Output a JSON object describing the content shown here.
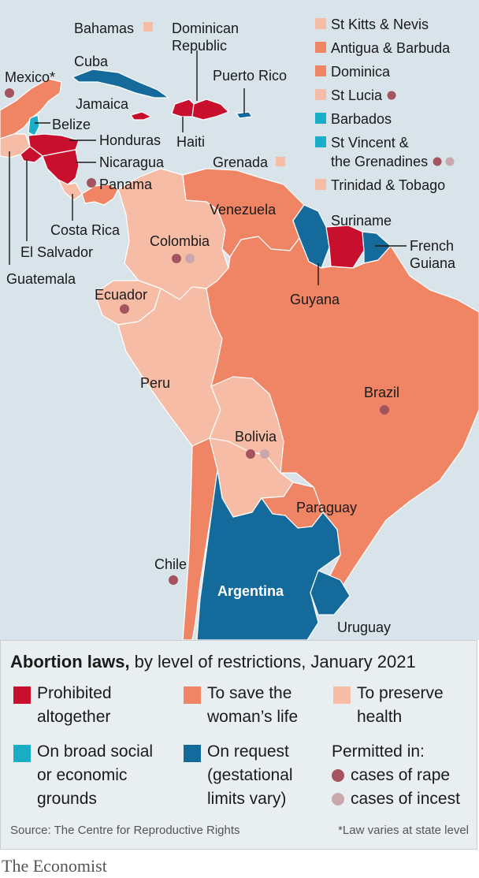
{
  "colors": {
    "sea": "#d8e4ea",
    "prohibited": "#c8102e",
    "save_life": "#f08566",
    "preserve_health": "#f7bca5",
    "broad_grounds": "#19aec6",
    "on_request": "#156a9c",
    "rape": "#a3545f",
    "incest": "#c9a8ad",
    "brand_red": "#e3120b"
  },
  "countries": {
    "bahamas": "Bahamas",
    "dominican_republic_1": "Dominican",
    "dominican_republic_2": "Republic",
    "cuba": "Cuba",
    "puerto_rico": "Puerto Rico",
    "mexico": "Mexico*",
    "jamaica": "Jamaica",
    "belize": "Belize",
    "haiti": "Haiti",
    "honduras": "Honduras",
    "nicaragua": "Nicaragua",
    "panama": "Panama",
    "grenada": "Grenada",
    "costa_rica": "Costa Rica",
    "el_salvador": "El Salvador",
    "guatemala": "Guatemala",
    "venezuela": "Venezuela",
    "suriname": "Suriname",
    "colombia": "Colombia",
    "french_guiana_1": "French",
    "french_guiana_2": "Guiana",
    "guyana": "Guyana",
    "ecuador": "Ecuador",
    "peru": "Peru",
    "brazil": "Brazil",
    "bolivia": "Bolivia",
    "paraguay": "Paraguay",
    "chile": "Chile",
    "argentina": "Argentina",
    "uruguay": "Uruguay"
  },
  "island_list": [
    {
      "name": "St Kitts & Nevis",
      "category": "preserve_health",
      "rape": false,
      "incest": false
    },
    {
      "name": "Antigua & Barbuda",
      "category": "save_life",
      "rape": false,
      "incest": false
    },
    {
      "name": "Dominica",
      "category": "save_life",
      "rape": false,
      "incest": false
    },
    {
      "name": "St Lucia",
      "category": "preserve_health",
      "rape": true,
      "incest": false
    },
    {
      "name": "Barbados",
      "category": "broad_grounds",
      "rape": false,
      "incest": false
    },
    {
      "name": "St Vincent &",
      "name2": "the Grenadines",
      "category": "broad_grounds",
      "rape": true,
      "incest": true
    },
    {
      "name": "Trinidad & Tobago",
      "category": "preserve_health",
      "rape": false,
      "incest": false
    }
  ],
  "legend": {
    "title_bold": "Abortion laws,",
    "title_rest": " by level of restrictions, January 2021",
    "prohibited_1": "Prohibited",
    "prohibited_2": "altogether",
    "save_life_1": "To save the",
    "save_life_2": "woman’s life",
    "preserve_1": "To preserve",
    "preserve_2": "health",
    "broad_1": "On broad social",
    "broad_2": "or economic",
    "broad_3": "grounds",
    "request_1": "On request",
    "request_2": "(gestational",
    "request_3": "limits vary)",
    "permitted": "Permitted in:",
    "rape": "cases of rape",
    "incest": "cases of incest"
  },
  "source": "Source: The Centre for Reproductive Rights",
  "footnote": "*Law varies at state level",
  "brand": "The Economist"
}
